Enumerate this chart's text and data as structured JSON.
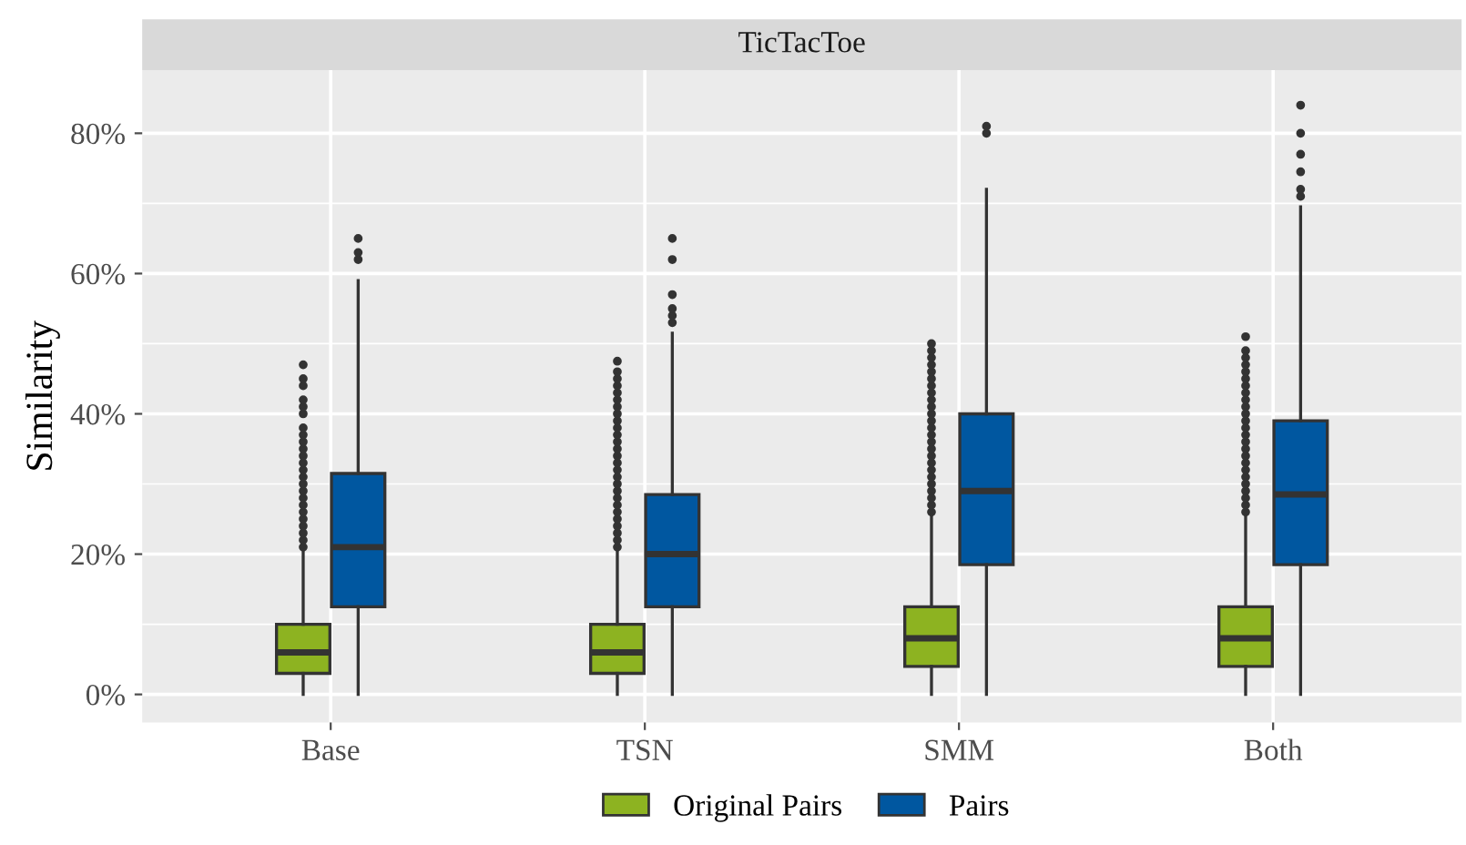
{
  "chart_data": {
    "type": "box",
    "title": "TicTacToe",
    "ylabel": "Similarity",
    "categories": [
      "Base",
      "TSN",
      "SMM",
      "Both"
    ],
    "series": [
      {
        "name": "Original Pairs",
        "color": "#8db321",
        "boxes": [
          {
            "low": 0,
            "q1": 3,
            "median": 6,
            "q3": 10,
            "high": 20.5,
            "outliers": [
              21,
              22,
              23,
              24,
              25,
              26,
              27,
              28,
              29,
              30,
              31,
              32,
              33,
              34,
              35,
              36,
              37,
              38,
              40,
              41,
              42,
              44,
              45,
              47
            ]
          },
          {
            "low": 0,
            "q1": 3,
            "median": 6,
            "q3": 10,
            "high": 20.5,
            "outliers": [
              21,
              22,
              23,
              24,
              25,
              26,
              27,
              28,
              29,
              30,
              31,
              32,
              33,
              34,
              35,
              36,
              37,
              38,
              39,
              40,
              41,
              42,
              43,
              44,
              45,
              46,
              47.5
            ]
          },
          {
            "low": 0,
            "q1": 4,
            "median": 8,
            "q3": 12.5,
            "high": 25.5,
            "outliers": [
              26,
              27,
              28,
              29,
              30,
              31,
              32,
              33,
              34,
              35,
              36,
              37,
              38,
              39,
              40,
              41,
              42,
              43,
              44,
              45,
              46,
              47,
              48,
              49,
              50
            ]
          },
          {
            "low": 0,
            "q1": 4,
            "median": 8,
            "q3": 12.5,
            "high": 25.5,
            "outliers": [
              26,
              27,
              28,
              29,
              30,
              31,
              32,
              33,
              34,
              35,
              36,
              37,
              38,
              39,
              40,
              41,
              42,
              43,
              44,
              45,
              46,
              47,
              48,
              49,
              51
            ]
          }
        ]
      },
      {
        "name": "Pairs",
        "color": "#0057a0",
        "boxes": [
          {
            "low": 0,
            "q1": 12.5,
            "median": 21,
            "q3": 31.5,
            "high": 59,
            "outliers": [
              62,
              63,
              65
            ]
          },
          {
            "low": 0,
            "q1": 12.5,
            "median": 20,
            "q3": 28.5,
            "high": 51.5,
            "outliers": [
              53,
              54,
              55,
              57,
              62,
              65
            ]
          },
          {
            "low": 0,
            "q1": 18.5,
            "median": 29,
            "q3": 40,
            "high": 72,
            "outliers": [
              80,
              81
            ]
          },
          {
            "low": 0,
            "q1": 18.5,
            "median": 28.5,
            "q3": 39,
            "high": 69.5,
            "outliers": [
              71,
              72,
              74.5,
              77,
              80,
              84
            ]
          }
        ]
      }
    ],
    "ylim": [
      -4,
      89
    ],
    "yticks": [
      {
        "value": 0,
        "label": "0%"
      },
      {
        "value": 20,
        "label": "20%"
      },
      {
        "value": 40,
        "label": "40%"
      },
      {
        "value": 60,
        "label": "60%"
      },
      {
        "value": 80,
        "label": "80%"
      }
    ],
    "grid": true,
    "legend": "bottom"
  }
}
